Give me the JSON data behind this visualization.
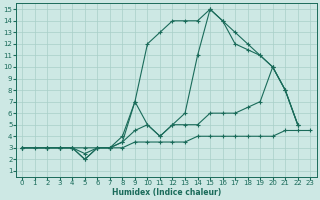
{
  "xlabel": "Humidex (Indice chaleur)",
  "bg_color": "#cde8e4",
  "grid_color": "#a8cfc8",
  "line_color": "#1a6b5a",
  "xlim": [
    -0.5,
    23.5
  ],
  "ylim": [
    0.5,
    15.5
  ],
  "yticks": [
    1,
    2,
    3,
    4,
    5,
    6,
    7,
    8,
    9,
    10,
    11,
    12,
    13,
    14,
    15
  ],
  "xticks": [
    0,
    1,
    2,
    3,
    4,
    5,
    6,
    7,
    8,
    9,
    10,
    11,
    12,
    13,
    14,
    15,
    16,
    17,
    18,
    19,
    20,
    21,
    22,
    23
  ],
  "series": [
    {
      "x": [
        0,
        1,
        2,
        3,
        4,
        5,
        6,
        7,
        8,
        9,
        10,
        11,
        12,
        13,
        14,
        15,
        16,
        17,
        18,
        19,
        20,
        21,
        22,
        23
      ],
      "y": [
        3,
        3,
        3,
        3,
        3,
        3,
        3,
        3,
        3,
        3.5,
        3.5,
        3.5,
        3.5,
        3.5,
        4,
        4,
        4,
        4,
        4,
        4,
        4,
        4.5,
        4.5,
        4.5
      ]
    },
    {
      "x": [
        0,
        2,
        3,
        4,
        5,
        6,
        7,
        8,
        9,
        10,
        11,
        12,
        13,
        14,
        15,
        16,
        17,
        18,
        19,
        20,
        21,
        22
      ],
      "y": [
        3,
        3,
        3,
        3,
        2,
        3,
        3,
        4,
        7,
        5,
        4,
        5,
        5,
        5,
        6,
        6,
        6,
        6.5,
        7,
        10,
        8,
        5
      ]
    },
    {
      "x": [
        0,
        2,
        3,
        4,
        5,
        6,
        7,
        8,
        9,
        10,
        11,
        12,
        13,
        14,
        15,
        16,
        17,
        18,
        19,
        20,
        21,
        22
      ],
      "y": [
        3,
        3,
        3,
        3,
        2,
        3,
        3,
        3.5,
        7,
        12,
        13,
        14,
        14,
        14,
        15,
        14,
        12,
        11.5,
        11,
        10,
        8,
        5
      ]
    },
    {
      "x": [
        0,
        2,
        3,
        4,
        5,
        6,
        7,
        8,
        9,
        10,
        11,
        12,
        13,
        14,
        15,
        16,
        17,
        18,
        19,
        20,
        21,
        22
      ],
      "y": [
        3,
        3,
        3,
        3,
        2.5,
        3,
        3,
        3.5,
        4.5,
        5,
        4,
        5,
        6,
        11,
        15,
        14,
        13,
        12,
        11,
        10,
        8,
        5
      ]
    }
  ]
}
